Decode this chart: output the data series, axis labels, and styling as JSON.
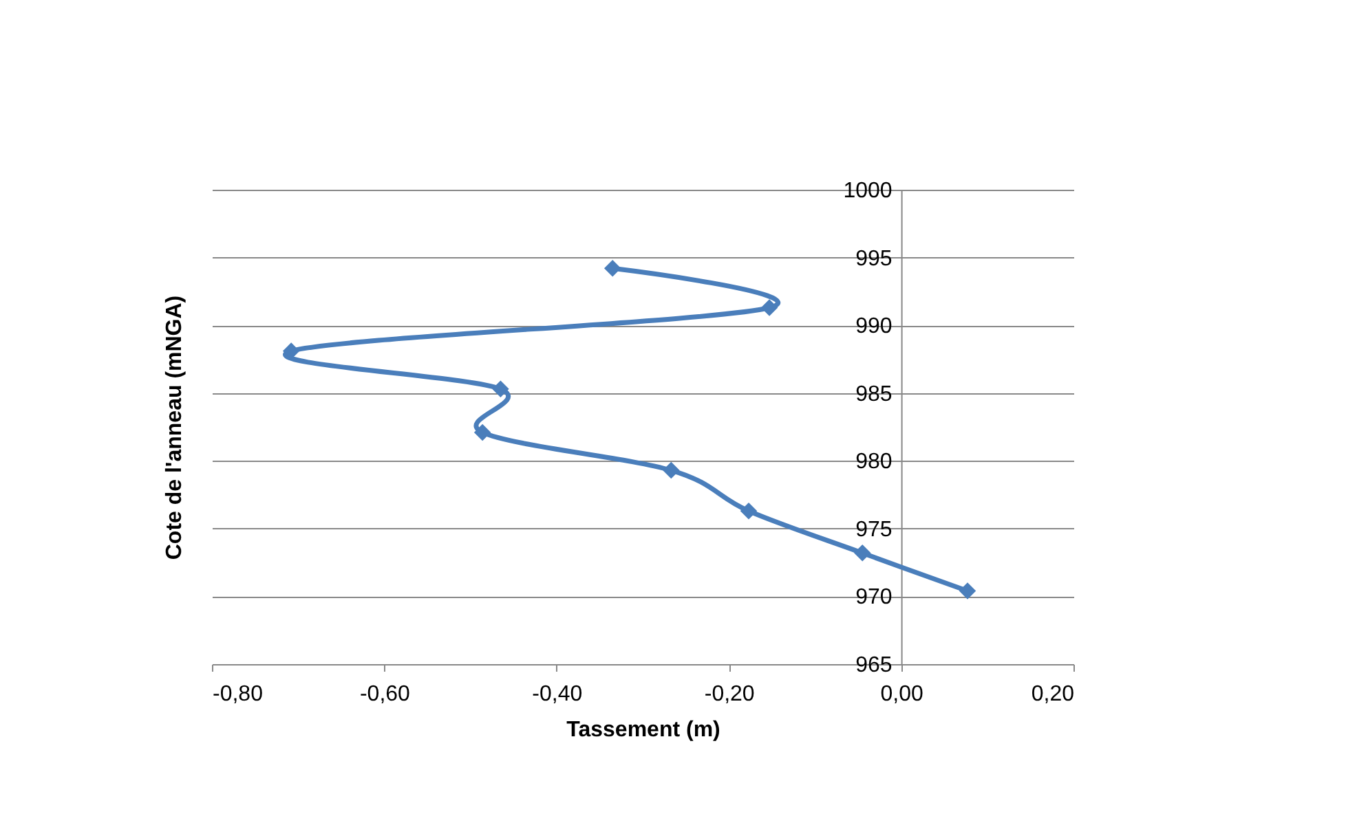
{
  "chart_data": {
    "type": "line",
    "xlabel": "Tassement (m)",
    "ylabel": "Cote de l'anneau (mNGA)",
    "series": [
      {
        "color": "#4a7ebb",
        "x": [
          -0.335,
          -0.153,
          -0.708,
          -0.465,
          -0.486,
          -0.267,
          -0.177,
          -0.045,
          0.077
        ],
        "values": [
          994.2,
          991.3,
          988.1,
          985.3,
          982.1,
          979.3,
          976.3,
          973.2,
          970.4
        ]
      }
    ],
    "xlim": [
      -0.8,
      0.2
    ],
    "xticks": [
      {
        "value": -0.8,
        "label": "-0,80"
      },
      {
        "value": -0.6,
        "label": "-0,60"
      },
      {
        "value": -0.4,
        "label": "-0,40"
      },
      {
        "value": -0.2,
        "label": "-0,20"
      },
      {
        "value": 0,
        "label": "0,00"
      },
      {
        "value": 0.2,
        "label": "0,20"
      }
    ],
    "ylim": [
      965,
      1000
    ],
    "yticks": [
      965,
      970,
      975,
      980,
      985,
      990,
      995,
      1000
    ],
    "grid": "y",
    "marker": "diamond",
    "line_style": "solid"
  }
}
